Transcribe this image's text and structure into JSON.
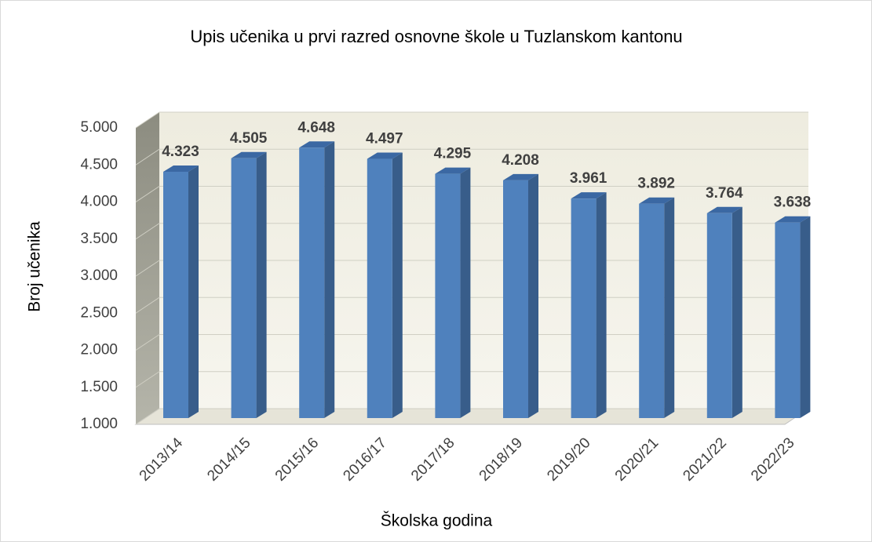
{
  "chart_data": {
    "type": "bar3d",
    "title": "Upis učenika u prvi razred osnovne škole u Tuzlanskom kantonu",
    "x_label": "Školska godina",
    "y_label": "Broj učenika",
    "categories": [
      "2013/14",
      "2014/15",
      "2015/16",
      "2016/17",
      "2017/18",
      "2018/19",
      "2019/20",
      "2020/21",
      "2021/22",
      "2022/23"
    ],
    "values": [
      4323,
      4505,
      4648,
      4497,
      4295,
      4208,
      3961,
      3892,
      3764,
      3638
    ],
    "value_labels": [
      "4.323",
      "4.505",
      "4.648",
      "4.497",
      "4.295",
      "4.208",
      "3.961",
      "3.892",
      "3.764",
      "3.638"
    ],
    "color": "#4f81bd",
    "ylim": [
      1000,
      5000
    ],
    "yticks": [
      {
        "value": 1000,
        "label": "1.000"
      },
      {
        "value": 1500,
        "label": "1.500"
      },
      {
        "value": 2000,
        "label": "2.000"
      },
      {
        "value": 2500,
        "label": "2.500"
      },
      {
        "value": 3000,
        "label": "3.000"
      },
      {
        "value": 3500,
        "label": "3.500"
      },
      {
        "value": 4000,
        "label": "4.000"
      },
      {
        "value": 4500,
        "label": "4.500"
      },
      {
        "value": 5000,
        "label": "5.000"
      }
    ],
    "grid": true
  }
}
